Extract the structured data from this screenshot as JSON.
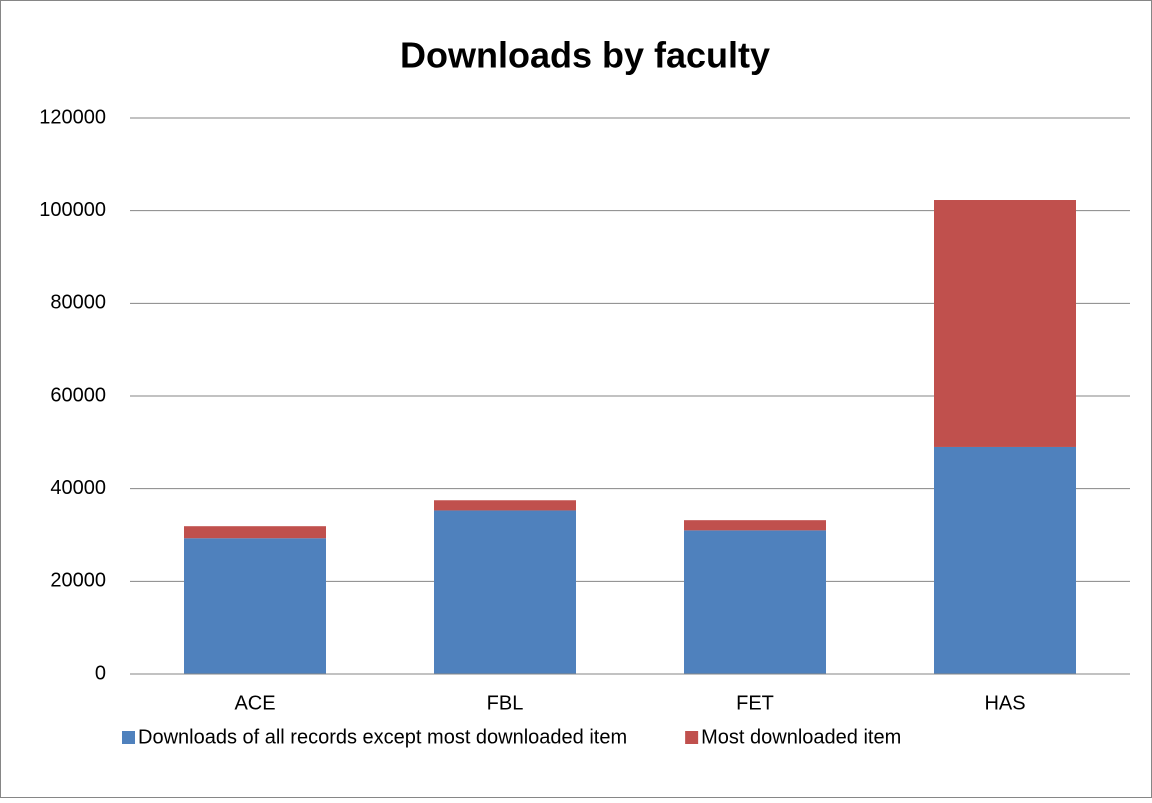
{
  "chart_data": {
    "type": "stacked_bar",
    "title": "Downloads by faculty",
    "categories": [
      "ACE",
      "FBL",
      "FET",
      "HAS"
    ],
    "series": [
      {
        "name": "Downloads of all records except most downloaded item",
        "color": "#4f81bd",
        "values": [
          29300,
          35300,
          31000,
          49000
        ]
      },
      {
        "name": "Most downloaded item",
        "color": "#c0504d",
        "values": [
          2600,
          2200,
          2200,
          53300
        ]
      }
    ],
    "ylim": [
      0,
      120000
    ],
    "yticks": [
      0,
      20000,
      40000,
      60000,
      80000,
      100000,
      120000
    ],
    "grid": true,
    "legend": "bottom"
  }
}
